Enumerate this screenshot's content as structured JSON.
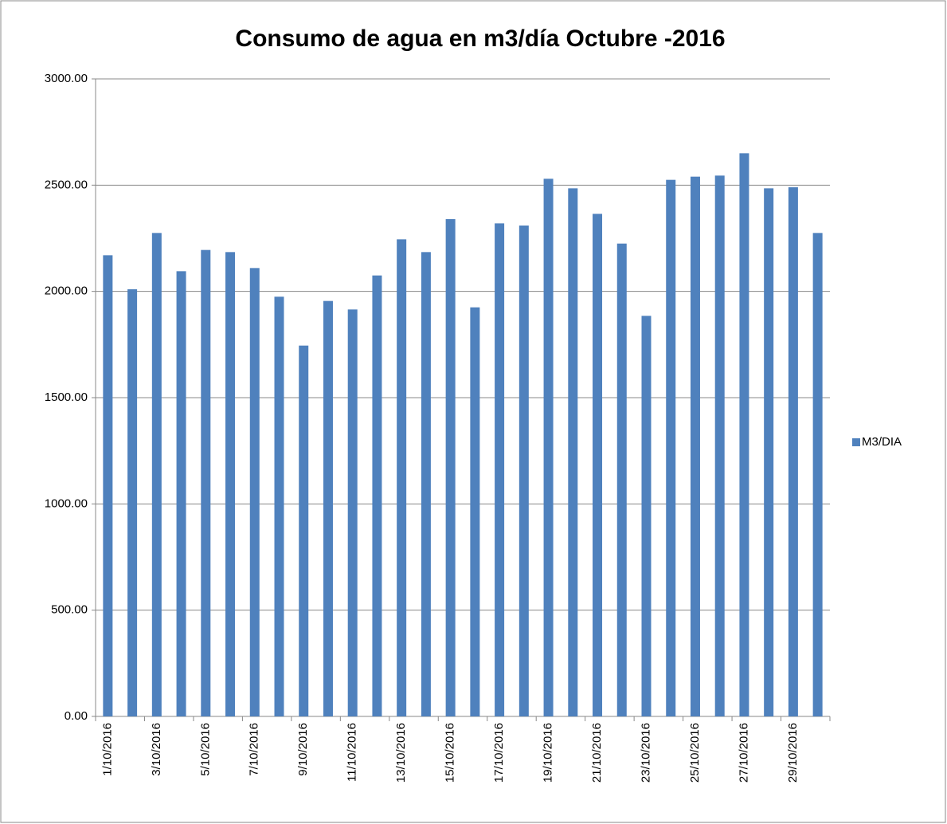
{
  "chart_data": {
    "type": "bar",
    "title": "Consumo de agua en m3/día Octubre -2016",
    "categories": [
      "1/10/2016",
      null,
      "3/10/2016",
      null,
      "5/10/2016",
      null,
      "7/10/2016",
      null,
      "9/10/2016",
      null,
      "11/10/2016",
      null,
      "13/10/2016",
      null,
      "15/10/2016",
      null,
      "17/10/2016",
      null,
      "19/10/2016",
      null,
      "21/10/2016",
      null,
      "23/10/2016",
      null,
      "25/10/2016",
      null,
      "27/10/2016",
      null,
      "29/10/2016",
      null
    ],
    "series": [
      {
        "name": "M3/DIA",
        "color": "#4f81bd",
        "values": [
          2170,
          2010,
          2275,
          2095,
          2195,
          2185,
          2110,
          1975,
          1745,
          1955,
          1915,
          2075,
          2245,
          2185,
          2340,
          1925,
          2320,
          2310,
          2530,
          2485,
          2365,
          2225,
          1885,
          2525,
          2540,
          2545,
          2650,
          2485,
          2490,
          2275
        ]
      }
    ],
    "ylim": [
      0,
      3000
    ],
    "yticks": [
      {
        "value": 0,
        "label": "0.00"
      },
      {
        "value": 500,
        "label": "500.00"
      },
      {
        "value": 1000,
        "label": "1000.00"
      },
      {
        "value": 1500,
        "label": "1500.00"
      },
      {
        "value": 2000,
        "label": "2000.00"
      },
      {
        "value": 2500,
        "label": "2500.00"
      },
      {
        "value": 3000,
        "label": "3000.00"
      }
    ],
    "grid": true,
    "legend": "right"
  }
}
